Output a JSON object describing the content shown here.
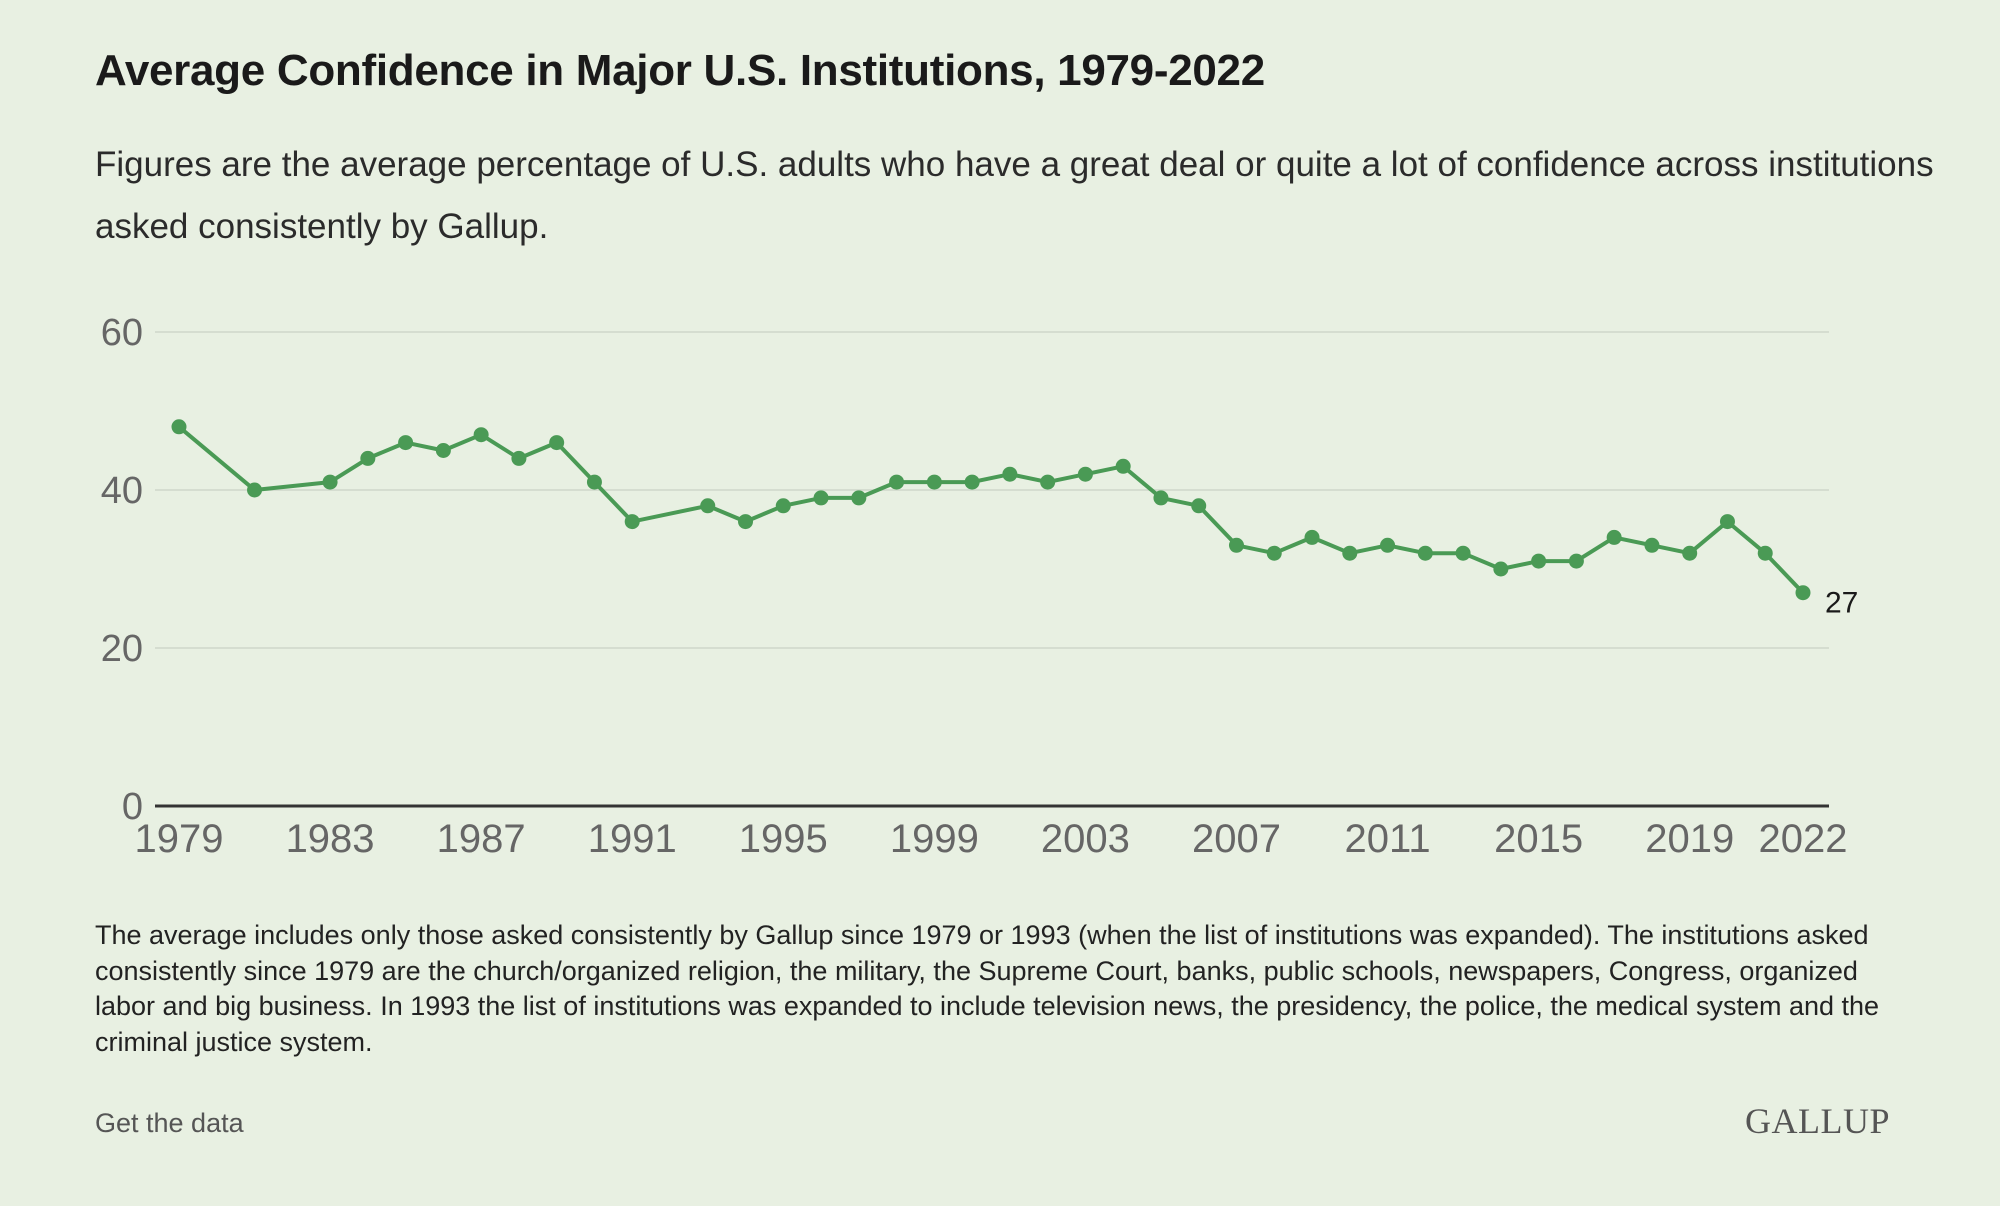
{
  "title": "Average Confidence in Major U.S. Institutions, 1979-2022",
  "subtitle": "Figures are the average percentage of U.S. adults who have a great deal or quite a lot of confidence across institutions asked consistently by Gallup.",
  "footnote": "The average includes only those asked consistently by Gallup since 1979 or 1993 (when the list of institutions was expanded). The institutions asked consistently since 1979 are the church/organized religion, the military, the Supreme Court, banks, public schools, newspapers, Congress, organized labor and big business. In 1993 the list of institutions was expanded to include television news, the presidency, the police, the medical system and the criminal justice system.",
  "get_data_label": "Get the data",
  "logo_text": "GALLUP",
  "colors": {
    "line": "#4a9a55",
    "background": "#e8f0e2",
    "grid": "#d5ddd0",
    "axis": "#333333"
  },
  "chart_data": {
    "type": "line",
    "title": "Average Confidence in Major U.S. Institutions, 1979-2022",
    "xlabel": "",
    "ylabel": "",
    "xlim": [
      1979,
      2022
    ],
    "ylim": [
      0,
      60
    ],
    "grid": true,
    "y_ticks": [
      0,
      20,
      40,
      60
    ],
    "x_ticks": [
      1979,
      1983,
      1987,
      1991,
      1995,
      1999,
      2003,
      2007,
      2011,
      2015,
      2019,
      2022
    ],
    "x": [
      1979,
      1981,
      1983,
      1984,
      1985,
      1986,
      1987,
      1988,
      1989,
      1990,
      1991,
      1993,
      1994,
      1995,
      1996,
      1997,
      1998,
      1999,
      2000,
      2001,
      2002,
      2003,
      2004,
      2005,
      2006,
      2007,
      2008,
      2009,
      2010,
      2011,
      2012,
      2013,
      2014,
      2015,
      2016,
      2017,
      2018,
      2019,
      2020,
      2021,
      2022
    ],
    "y": [
      48,
      40,
      41,
      44,
      46,
      45,
      47,
      44,
      46,
      41,
      36,
      38,
      36,
      38,
      39,
      39,
      41,
      41,
      41,
      42,
      41,
      42,
      43,
      39,
      38,
      33,
      32,
      34,
      32,
      33,
      32,
      32,
      30,
      31,
      31,
      34,
      33,
      32,
      36,
      32,
      27
    ],
    "end_label": "27"
  }
}
